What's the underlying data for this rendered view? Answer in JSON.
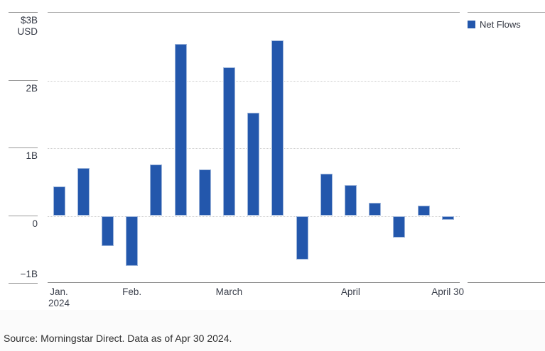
{
  "chart_data": {
    "type": "bar",
    "title": "",
    "unit_top_label": "$3B",
    "unit_sub_label": "USD",
    "ylim": [
      -1,
      3
    ],
    "grid": "horizontal dotted at interior ticks",
    "y_ticks": [
      {
        "label": "$3B",
        "sub": "USD",
        "value": 3
      },
      {
        "label": "2B",
        "value": 2
      },
      {
        "label": "1B",
        "value": 1
      },
      {
        "label": "0",
        "value": 0
      },
      {
        "label": "−1B",
        "value": -1
      }
    ],
    "x_labels": [
      {
        "label": "Jan.",
        "sub": "2024",
        "bar_index": 0
      },
      {
        "label": "Feb.",
        "bar_index": 3
      },
      {
        "label": "March",
        "bar_index": 7
      },
      {
        "label": "April",
        "bar_index": 12
      },
      {
        "label": "April 30",
        "bar_index": 16
      }
    ],
    "series": [
      {
        "name": "Net Flows",
        "color": "#2357ac",
        "values": [
          0.43,
          0.71,
          -0.44,
          -0.74,
          0.76,
          2.54,
          0.69,
          2.19,
          1.52,
          2.59,
          -0.64,
          0.62,
          0.46,
          0.19,
          -0.32,
          0.15,
          -0.06
        ]
      }
    ],
    "legend": {
      "label": "Net Flows",
      "position": "top-right",
      "color": "#2357ac"
    }
  },
  "footer": {
    "source_text": "Source: Morningstar Direct. Data as of Apr 30 2024."
  },
  "colors": {
    "bar": "#2357ac",
    "bar_border": "#9cb4da",
    "axis_text": "#353a46",
    "grid_dotted": "#cccccc",
    "panel_top_border": "#adadad",
    "panel_bottom_border": "#8a8a8a",
    "footer_strip": "#fbfbfb"
  }
}
